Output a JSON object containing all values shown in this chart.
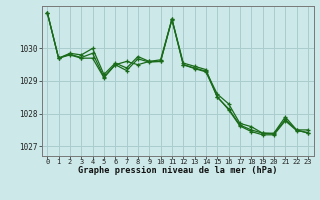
{
  "title": "Graphe pression niveau de la mer (hPa)",
  "bg_color": "#cce8e8",
  "grid_color": "#aacccc",
  "line_color": "#1a6b1a",
  "ylim": [
    1026.7,
    1031.3
  ],
  "xlim": [
    -0.5,
    23.5
  ],
  "yticks": [
    1027,
    1028,
    1029,
    1030
  ],
  "xticks": [
    0,
    1,
    2,
    3,
    4,
    5,
    6,
    7,
    8,
    9,
    10,
    11,
    12,
    13,
    14,
    15,
    16,
    17,
    18,
    19,
    20,
    21,
    22,
    23
  ],
  "series": [
    [
      1031.1,
      1029.7,
      1029.8,
      1029.7,
      1029.7,
      1029.1,
      1029.5,
      1029.6,
      1029.5,
      1029.6,
      1029.6,
      1030.9,
      1029.5,
      1029.4,
      1029.3,
      1028.6,
      1028.3,
      1027.7,
      1027.6,
      1027.4,
      1027.4,
      1027.9,
      1027.5,
      1027.5
    ],
    [
      1031.1,
      1029.7,
      1029.85,
      1029.8,
      1030.0,
      1029.2,
      1029.55,
      1029.4,
      1029.75,
      1029.6,
      1029.65,
      1030.9,
      1029.55,
      1029.45,
      1029.35,
      1028.5,
      1028.15,
      1027.65,
      1027.5,
      1027.4,
      1027.38,
      1027.82,
      1027.5,
      1027.4
    ],
    [
      1031.1,
      1029.7,
      1029.82,
      1029.72,
      1029.85,
      1029.12,
      1029.5,
      1029.32,
      1029.68,
      1029.58,
      1029.6,
      1030.88,
      1029.5,
      1029.38,
      1029.28,
      1028.52,
      1028.12,
      1027.62,
      1027.45,
      1027.35,
      1027.35,
      1027.78,
      1027.48,
      1027.42
    ]
  ]
}
